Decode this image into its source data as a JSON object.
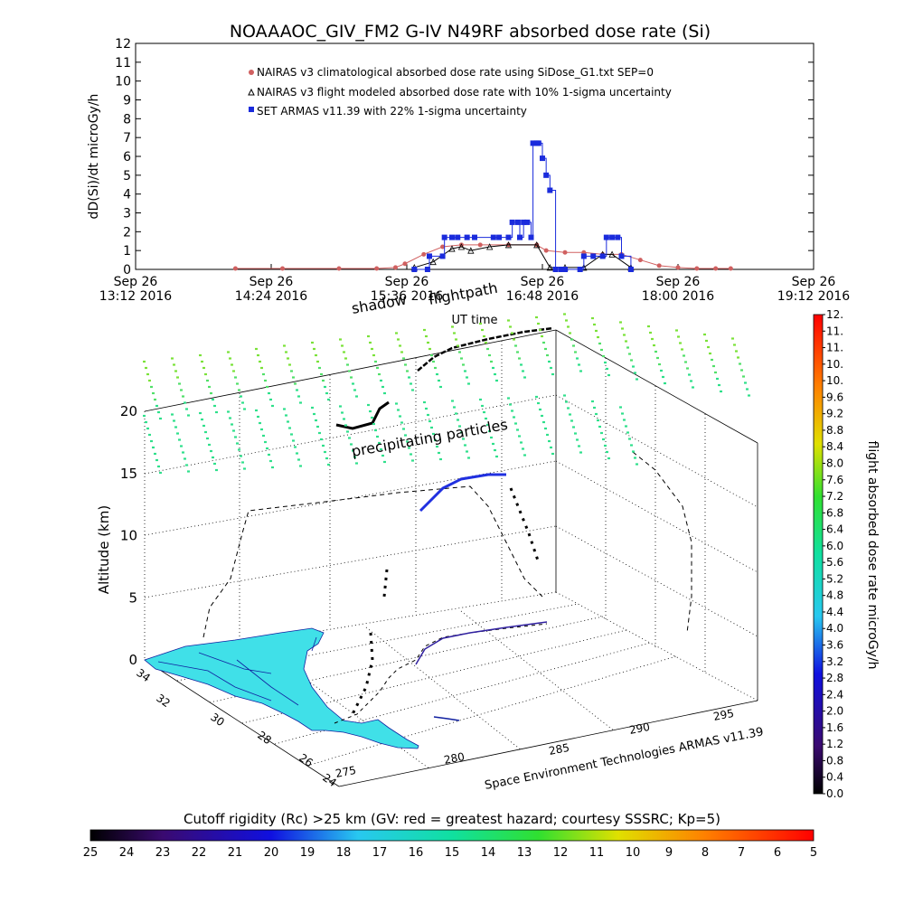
{
  "title": "NOAAAOC_GIV_FM2 G-IV    N49RF  absorbed dose rate (Si)",
  "colors": {
    "nairas_clim": "#d06060",
    "nairas_flight": "#000000",
    "armas": "#1a2bdc",
    "map_land": "#40e0e8",
    "map_border": "#1020a0"
  },
  "chart_data": [
    {
      "type": "line",
      "name": "dose-rate-time-series",
      "ylabel": "dD(Si)/dt microGy/h",
      "xlabel": "UT time",
      "ylim": [
        0,
        12
      ],
      "yticks": [
        0,
        1,
        2,
        3,
        4,
        5,
        6,
        7,
        8,
        9,
        10,
        11,
        12
      ],
      "xlim_minutes": [
        792,
        1152
      ],
      "xticks": [
        {
          "m": 792,
          "label1": "Sep 26",
          "label2": "13:12 2016"
        },
        {
          "m": 864,
          "label1": "Sep 26",
          "label2": "14:24 2016"
        },
        {
          "m": 936,
          "label1": "Sep 26",
          "label2": "15:36 2016"
        },
        {
          "m": 1008,
          "label1": "Sep 26",
          "label2": "16:48 2016"
        },
        {
          "m": 1080,
          "label1": "Sep 26",
          "label2": "18:00 2016"
        },
        {
          "m": 1152,
          "label1": "Sep 26",
          "label2": "19:12 2016"
        }
      ],
      "legend": [
        "NAIRAS v3 climatological absorbed dose rate using SiDose_G1.txt SEP=0",
        "NAIRAS v3 flight modeled absorbed dose rate with 10% 1-sigma uncertainty",
        "SET ARMAS v11.39 with 22% 1-sigma uncertainty"
      ],
      "series": [
        {
          "name": "NAIRAS v3 climatological absorbed dose rate using SiDose_G1.txt SEP=0",
          "x": [
            "14:05",
            "14:30",
            "15:00",
            "15:20",
            "15:30",
            "15:35",
            "15:45",
            "15:55",
            "16:05",
            "16:15",
            "16:30",
            "16:45",
            "16:50",
            "17:00",
            "17:10",
            "17:20",
            "17:30",
            "17:40",
            "17:50",
            "18:00",
            "18:10",
            "18:20",
            "18:28"
          ],
          "y": [
            0.05,
            0.05,
            0.05,
            0.05,
            0.1,
            0.3,
            0.8,
            1.2,
            1.3,
            1.3,
            1.3,
            1.3,
            1.0,
            0.9,
            0.9,
            0.8,
            0.8,
            0.5,
            0.2,
            0.1,
            0.05,
            0.05,
            0.05
          ]
        },
        {
          "name": "NAIRAS v3 flight modeled absorbed dose rate with 10% 1-sigma uncertainty",
          "x": [
            "15:40",
            "15:50",
            "16:00",
            "16:05",
            "16:10",
            "16:20",
            "16:30",
            "16:45",
            "16:52",
            "17:00",
            "17:10",
            "17:20",
            "17:25",
            "17:35"
          ],
          "y": [
            0.1,
            0.4,
            1.1,
            1.2,
            1.0,
            1.2,
            1.3,
            1.3,
            0.1,
            0.1,
            0.1,
            0.8,
            0.8,
            0.1
          ]
        },
        {
          "name": "SET ARMAS v11.39 with 22% 1-sigma uncertainty",
          "x": [
            "15:40",
            "15:47",
            "15:48",
            "15:55",
            "15:56",
            "16:00",
            "16:03",
            "16:08",
            "16:12",
            "16:22",
            "16:25",
            "16:30",
            "16:32",
            "16:35",
            "16:36",
            "16:38",
            "16:40",
            "16:42",
            "16:43",
            "16:45",
            "16:46",
            "16:48",
            "16:50",
            "16:52",
            "16:55",
            "16:58",
            "17:00",
            "17:08",
            "17:10",
            "17:15",
            "17:20",
            "17:22",
            "17:25",
            "17:28",
            "17:30",
            "17:35"
          ],
          "y": [
            0.0,
            0.0,
            0.7,
            0.7,
            1.7,
            1.7,
            1.7,
            1.7,
            1.7,
            1.7,
            1.7,
            1.7,
            2.5,
            2.5,
            1.7,
            2.5,
            2.5,
            1.7,
            6.7,
            6.7,
            6.7,
            5.9,
            5.0,
            4.2,
            0.0,
            0.0,
            0.0,
            0.0,
            0.7,
            0.7,
            0.7,
            1.7,
            1.7,
            1.7,
            0.7,
            0.0
          ]
        }
      ]
    },
    {
      "type": "scatter",
      "name": "3d-flight-altitude",
      "zlabel": "Altitude (km)",
      "zlim": [
        0,
        20
      ],
      "zticks": [
        0,
        5,
        10,
        15,
        20
      ],
      "latticks": [
        24,
        26,
        28,
        30,
        32,
        34
      ],
      "lonticks": [
        275,
        280,
        285,
        290,
        295
      ],
      "lon_axis_label": "Space Environment Technologies ARMAS v11.39",
      "annotations": [
        "shadow",
        "flightpath",
        "precipitating particles"
      ]
    }
  ],
  "colorbar_right": {
    "label": "flight absorbed dose rate microGy/h",
    "ticks": [
      "0.0",
      "0.4",
      "0.8",
      "1.2",
      "1.6",
      "2.0",
      "2.4",
      "2.8",
      "3.2",
      "3.6",
      "4.0",
      "4.4",
      "4.8",
      "5.2",
      "5.6",
      "6.0",
      "6.4",
      "6.8",
      "7.2",
      "7.6",
      "8.0",
      "8.4",
      "8.8",
      "9.2",
      "9.6",
      "10.",
      "10.",
      "11.",
      "11.",
      "12."
    ]
  },
  "colorbar_bottom": {
    "label": "Cutoff rigidity (Rc) >25 km (GV: red = greatest hazard; courtesy SSSRC; Kp=5)",
    "ticks": [
      "25",
      "24",
      "23",
      "22",
      "21",
      "20",
      "19",
      "18",
      "17",
      "16",
      "15",
      "14",
      "13",
      "12",
      "11",
      "10",
      "9",
      "8",
      "7",
      "6",
      "5"
    ]
  }
}
